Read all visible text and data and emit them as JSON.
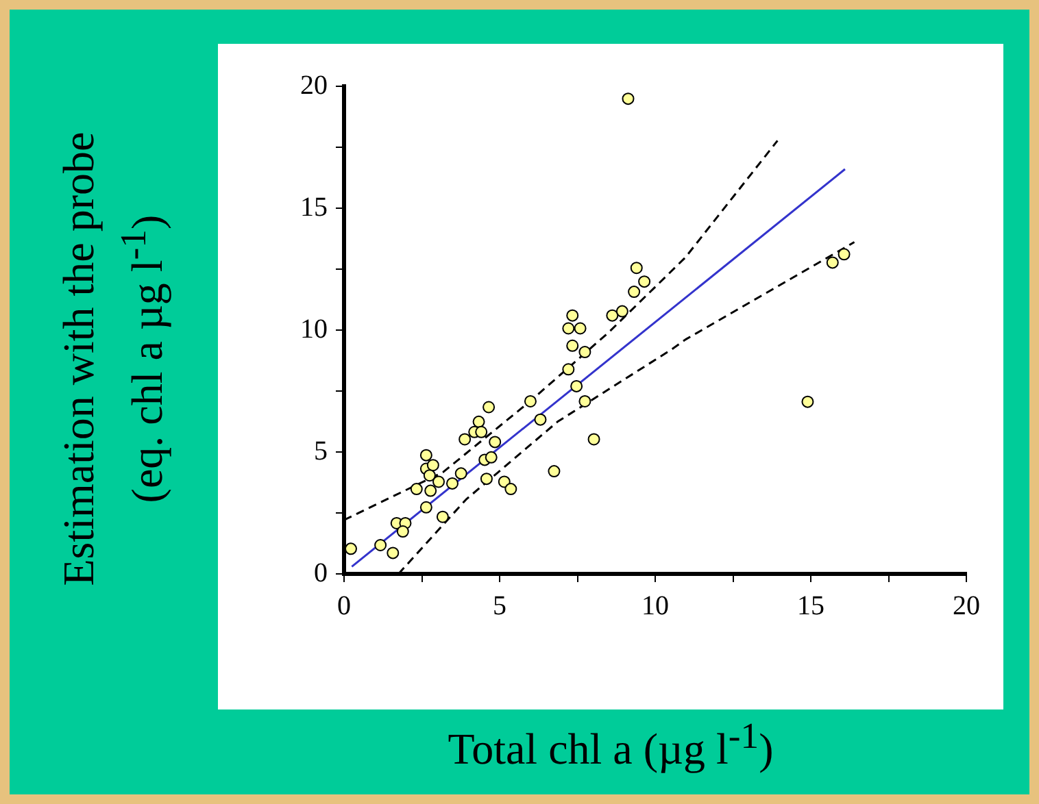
{
  "chart_data": {
    "type": "scatter",
    "xlabel": "Total chl a (µg l$^{-1}$)",
    "ylabel": "Estimation with the probe\n(eq. chl a µg l$^{-1}$)",
    "xlim": [
      0,
      20
    ],
    "ylim": [
      0,
      20
    ],
    "xticks": [
      0,
      {
        "value": 2.5,
        "label": null
      },
      5,
      {
        "value": 7.5,
        "label": null
      },
      10,
      {
        "value": 12.5,
        "label": null
      },
      15,
      {
        "value": 17.5,
        "label": null
      },
      20
    ],
    "yticks": [
      0,
      {
        "value": 2.5,
        "label": null
      },
      5,
      {
        "value": 7.5,
        "label": null
      },
      10,
      {
        "value": 12.5,
        "label": null
      },
      15,
      {
        "value": 17.5,
        "label": null
      },
      20
    ],
    "grid": false,
    "legend": false,
    "series": [
      {
        "type": "scatter",
        "marker": "circle",
        "color": "#ffff99",
        "x": [
          0.22,
          1.17,
          1.57,
          1.69,
          1.97,
          1.89,
          2.33,
          2.64,
          2.64,
          2.86,
          2.75,
          2.78,
          2.64,
          3.04,
          3.17,
          3.48,
          3.76,
          3.88,
          4.19,
          4.33,
          4.41,
          4.65,
          4.52,
          4.73,
          4.58,
          4.85,
          5.15,
          5.36,
          5.99,
          6.31,
          6.75,
          7.21,
          7.34,
          7.21,
          7.59,
          7.34,
          7.74,
          7.47,
          7.74,
          8.03,
          8.62,
          8.94,
          9.13,
          9.32,
          9.65,
          9.4,
          15.7,
          16.07,
          14.9
        ],
        "values": [
          1.03,
          1.18,
          0.86,
          2.08,
          2.08,
          1.74,
          3.48,
          4.87,
          4.31,
          4.46,
          4.04,
          3.41,
          2.73,
          3.78,
          2.34,
          3.71,
          4.12,
          5.52,
          5.82,
          6.24,
          5.82,
          6.84,
          4.68,
          4.78,
          3.9,
          5.41,
          3.78,
          3.48,
          7.08,
          6.33,
          4.21,
          8.39,
          10.6,
          10.07,
          10.07,
          9.36,
          9.1,
          7.7,
          7.08,
          5.52,
          10.6,
          10.77,
          19.49,
          11.57,
          11.99,
          12.55,
          12.77,
          13.11,
          7.06
        ]
      },
      {
        "type": "line",
        "marker": "none",
        "color": "#3333cc",
        "line_style": "solid",
        "x": [
          0.25,
          16.1
        ],
        "values": [
          0.3,
          16.6
        ]
      },
      {
        "type": "line",
        "marker": "none",
        "color": "#000000",
        "line_style": "dashed",
        "x": [
          0,
          3.19,
          5.98,
          8.5,
          10.97,
          13.93
        ],
        "values": [
          2.21,
          4.18,
          7.08,
          9.9,
          12.98,
          17.77
        ]
      },
      {
        "type": "line",
        "marker": "none",
        "color": "#000000",
        "line_style": "dashed",
        "x": [
          1.75,
          3.92,
          6.86,
          10.53,
          10.97,
          16.4
        ],
        "values": [
          0,
          3.05,
          6.24,
          9.21,
          9.61,
          13.61
        ]
      }
    ]
  }
}
